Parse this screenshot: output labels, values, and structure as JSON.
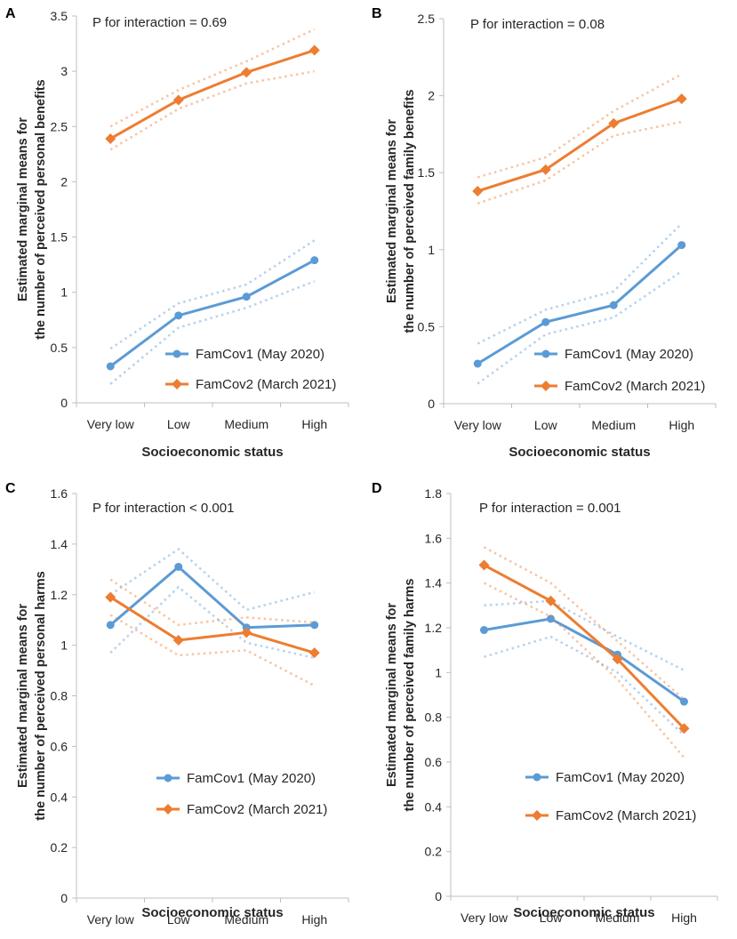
{
  "colors": {
    "series1": "#5B9BD5",
    "series2": "#ED7D31",
    "axis": "#BFBFBF",
    "text": "#262626"
  },
  "chart_data": [
    {
      "panel": "A",
      "type": "line",
      "annotation": "P for interaction = 0.69",
      "categories": [
        "Very low",
        "Low",
        "Medium",
        "High"
      ],
      "xlabel": "Socioeconomic status",
      "ylabel_line1": "Estimated marginal means for",
      "ylabel_line2": "the number of perceived personal benefits",
      "ylim": [
        0,
        3.5
      ],
      "yticks": [
        "0",
        "0.5",
        "1",
        "1.5",
        "2",
        "2.5",
        "3",
        "3.5"
      ],
      "ytick_values": [
        0,
        0.5,
        1,
        1.5,
        2,
        2.5,
        3,
        3.5
      ],
      "legend_position": "bottom-right",
      "series": [
        {
          "name": "FamCov1 (May 2020)",
          "marker": "circle",
          "values": [
            0.33,
            0.79,
            0.96,
            1.29
          ],
          "ci_low": [
            0.17,
            0.68,
            0.86,
            1.1
          ],
          "ci_high": [
            0.49,
            0.9,
            1.07,
            1.47
          ]
        },
        {
          "name": "FamCov2 (March 2021)",
          "marker": "diamond",
          "values": [
            2.39,
            2.74,
            2.99,
            3.19
          ],
          "ci_low": [
            2.29,
            2.66,
            2.89,
            3.0
          ],
          "ci_high": [
            2.5,
            2.83,
            3.09,
            3.38
          ]
        }
      ]
    },
    {
      "panel": "B",
      "type": "line",
      "annotation": "P for interaction = 0.08",
      "categories": [
        "Very low",
        "Low",
        "Medium",
        "High"
      ],
      "xlabel": "Socioeconomic status",
      "ylabel_line1": "Estimated marginal means for",
      "ylabel_line2": "the number of perceived family benefits",
      "ylim": [
        0,
        2.5
      ],
      "yticks": [
        "0",
        "0.5",
        "1",
        "1.5",
        "2",
        "2.5"
      ],
      "ytick_values": [
        0,
        0.5,
        1,
        1.5,
        2,
        2.5
      ],
      "legend_position": "bottom-right",
      "series": [
        {
          "name": "FamCov1 (May 2020)",
          "marker": "circle",
          "values": [
            0.26,
            0.53,
            0.64,
            1.03
          ],
          "ci_low": [
            0.13,
            0.45,
            0.56,
            0.86
          ],
          "ci_high": [
            0.39,
            0.61,
            0.73,
            1.17
          ]
        },
        {
          "name": "FamCov2 (March 2021)",
          "marker": "diamond",
          "values": [
            1.38,
            1.52,
            1.82,
            1.98
          ],
          "ci_low": [
            1.3,
            1.45,
            1.74,
            1.83
          ],
          "ci_high": [
            1.47,
            1.6,
            1.9,
            2.14
          ]
        }
      ]
    },
    {
      "panel": "C",
      "type": "line",
      "annotation": "P for interaction < 0.001",
      "categories": [
        "Very low",
        "Low",
        "Medium",
        "High"
      ],
      "xlabel": "Socioeconomic status",
      "ylabel_line1": "Estimated marginal means for",
      "ylabel_line2": "the number of perceived personal harms",
      "ylim": [
        0,
        1.6
      ],
      "yticks": [
        "0",
        "0.2",
        "0.4",
        "0.6",
        "0.8",
        "1",
        "1.2",
        "1.4",
        "1.6"
      ],
      "ytick_values": [
        0,
        0.2,
        0.4,
        0.6,
        0.8,
        1,
        1.2,
        1.4,
        1.6
      ],
      "legend_position": "bottom-right",
      "series": [
        {
          "name": "FamCov1 (May 2020)",
          "marker": "circle",
          "values": [
            1.08,
            1.31,
            1.07,
            1.08
          ],
          "ci_low": [
            0.97,
            1.23,
            1.01,
            0.95
          ],
          "ci_high": [
            1.2,
            1.38,
            1.14,
            1.21
          ]
        },
        {
          "name": "FamCov2 (March 2021)",
          "marker": "diamond",
          "values": [
            1.19,
            1.02,
            1.05,
            0.97
          ],
          "ci_low": [
            1.12,
            0.96,
            0.98,
            0.84
          ],
          "ci_high": [
            1.26,
            1.08,
            1.11,
            1.09
          ]
        }
      ]
    },
    {
      "panel": "D",
      "type": "line",
      "annotation": "P for interaction = 0.001",
      "categories": [
        "Very low",
        "Low",
        "Medium",
        "High"
      ],
      "xlabel": "Socioeconomic status",
      "ylabel_line1": "Estimated marginal means for",
      "ylabel_line2": "the number of perceived family harms",
      "ylim": [
        0,
        1.8
      ],
      "yticks": [
        "0",
        "0.2",
        "0.4",
        "0.6",
        "0.8",
        "1",
        "1.2",
        "1.4",
        "1.6",
        "1.8"
      ],
      "ytick_values": [
        0,
        0.2,
        0.4,
        0.6,
        0.8,
        1,
        1.2,
        1.4,
        1.6,
        1.8
      ],
      "legend_position": "bottom-right",
      "series": [
        {
          "name": "FamCov1 (May 2020)",
          "marker": "circle",
          "values": [
            1.19,
            1.24,
            1.08,
            0.87
          ],
          "ci_low": [
            1.07,
            1.16,
            1.0,
            0.72
          ],
          "ci_high": [
            1.3,
            1.32,
            1.16,
            1.01
          ]
        },
        {
          "name": "FamCov2 (March 2021)",
          "marker": "diamond",
          "values": [
            1.48,
            1.32,
            1.06,
            0.75
          ],
          "ci_low": [
            1.4,
            1.25,
            0.97,
            0.62
          ],
          "ci_high": [
            1.56,
            1.4,
            1.14,
            0.88
          ]
        }
      ]
    }
  ]
}
